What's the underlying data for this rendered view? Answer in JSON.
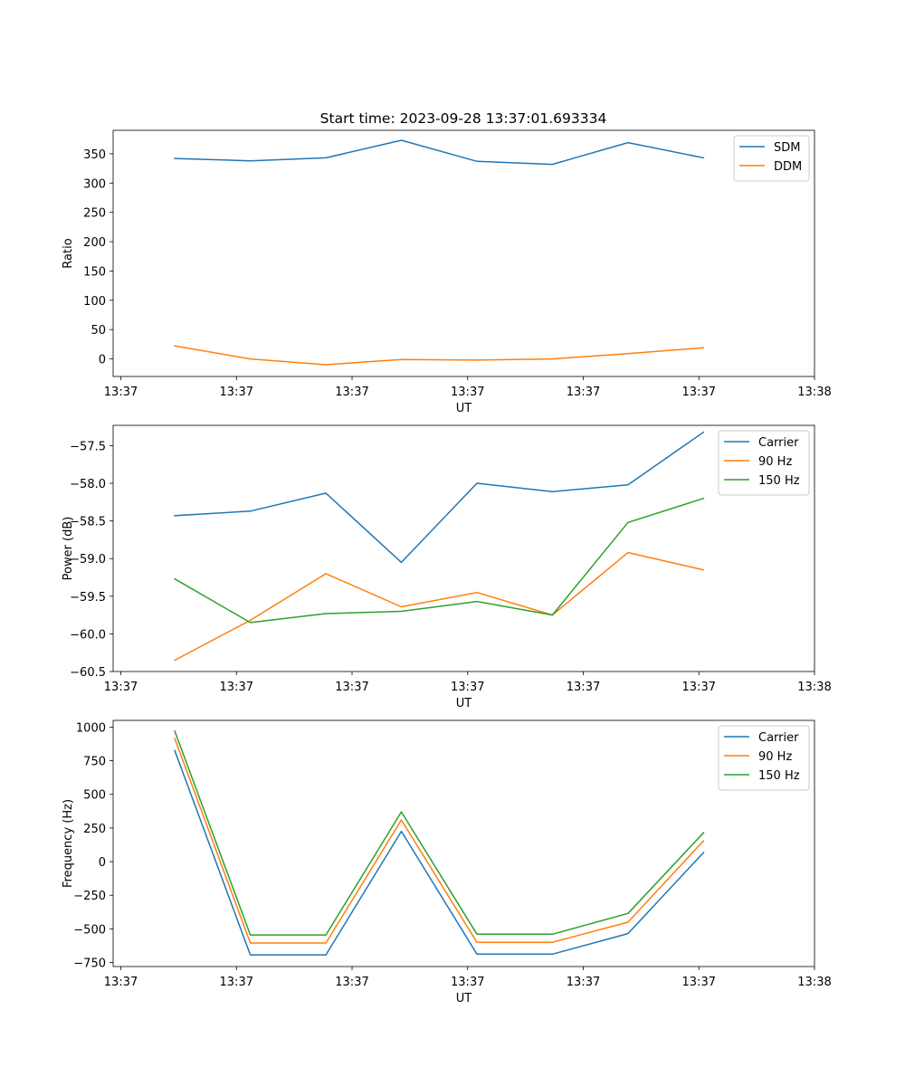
{
  "title": "Start time: 2023-09-28 13:37:01.693334",
  "colors": {
    "blue": "#1f77b4",
    "orange": "#ff7f0e",
    "green": "#2ca02c"
  },
  "chart_data": [
    {
      "type": "line",
      "name": "ratio",
      "xlabel": "UT",
      "ylabel": "Ratio",
      "xlim": [
        0,
        9.1
      ],
      "ylim": [
        -30,
        390
      ],
      "xticks": [
        0.1,
        1.6,
        3.1,
        4.6,
        6.1,
        7.6,
        9.1
      ],
      "xtick_labels": [
        "13:37",
        "13:37",
        "13:37",
        "13:37",
        "13:37",
        "13:37",
        "13:38"
      ],
      "yticks": [
        0,
        50,
        100,
        150,
        200,
        250,
        300,
        350
      ],
      "ytick_labels": [
        "0",
        "50",
        "100",
        "150",
        "200",
        "250",
        "300",
        "350"
      ],
      "x": [
        0.8,
        1.78,
        2.76,
        3.74,
        4.72,
        5.7,
        6.68,
        7.66
      ],
      "legend": "top-right",
      "series": [
        {
          "name": "SDM",
          "color": "blue",
          "values": [
            342,
            338,
            343,
            373,
            337,
            332,
            369,
            343
          ]
        },
        {
          "name": "DDM",
          "color": "orange",
          "values": [
            22,
            0,
            -10,
            -1,
            -2,
            0,
            9,
            19
          ]
        }
      ]
    },
    {
      "type": "line",
      "name": "power",
      "xlabel": "UT",
      "ylabel": "Power (dB)",
      "xlim": [
        0,
        9.1
      ],
      "ylim": [
        -60.5,
        -57.23
      ],
      "xticks": [
        0.1,
        1.6,
        3.1,
        4.6,
        6.1,
        7.6,
        9.1
      ],
      "xtick_labels": [
        "13:37",
        "13:37",
        "13:37",
        "13:37",
        "13:37",
        "13:37",
        "13:38"
      ],
      "yticks": [
        -60.5,
        -60.0,
        -59.5,
        -59.0,
        -58.5,
        -58.0,
        -57.5
      ],
      "ytick_labels": [
        "−60.5",
        "−60.0",
        "−59.5",
        "−59.0",
        "−58.5",
        "−58.0",
        "−57.5"
      ],
      "x": [
        0.8,
        1.78,
        2.76,
        3.74,
        4.72,
        5.7,
        6.68,
        7.66
      ],
      "legend": "top-right",
      "series": [
        {
          "name": "Carrier",
          "color": "blue",
          "values": [
            -58.43,
            -58.37,
            -58.13,
            -59.05,
            -58.0,
            -58.11,
            -58.02,
            -57.32
          ]
        },
        {
          "name": "90 Hz",
          "color": "orange",
          "values": [
            -60.35,
            -59.82,
            -59.2,
            -59.64,
            -59.45,
            -59.75,
            -58.92,
            -59.15
          ]
        },
        {
          "name": "150 Hz",
          "color": "green",
          "values": [
            -59.27,
            -59.85,
            -59.73,
            -59.7,
            -59.57,
            -59.75,
            -58.52,
            -58.2
          ]
        }
      ]
    },
    {
      "type": "line",
      "name": "frequency",
      "xlabel": "UT",
      "ylabel": "Frequency (Hz)",
      "xlim": [
        0,
        9.1
      ],
      "ylim": [
        -780,
        1050
      ],
      "xticks": [
        0.1,
        1.6,
        3.1,
        4.6,
        6.1,
        7.6,
        9.1
      ],
      "xtick_labels": [
        "13:37",
        "13:37",
        "13:37",
        "13:37",
        "13:37",
        "13:37",
        "13:38"
      ],
      "yticks": [
        -750,
        -500,
        -250,
        0,
        250,
        500,
        750,
        1000
      ],
      "ytick_labels": [
        "−750",
        "−500",
        "−250",
        "0",
        "250",
        "500",
        "750",
        "1000"
      ],
      "x": [
        0.8,
        1.78,
        2.76,
        3.74,
        4.72,
        5.7,
        6.68,
        7.66
      ],
      "legend": "top-right",
      "series": [
        {
          "name": "Carrier",
          "color": "blue",
          "values": [
            825,
            -693,
            -693,
            225,
            -688,
            -688,
            -535,
            68
          ]
        },
        {
          "name": "90 Hz",
          "color": "orange",
          "values": [
            915,
            -605,
            -605,
            310,
            -600,
            -600,
            -450,
            155
          ]
        },
        {
          "name": "150 Hz",
          "color": "green",
          "values": [
            970,
            -545,
            -545,
            370,
            -540,
            -540,
            -385,
            215
          ]
        }
      ]
    }
  ]
}
